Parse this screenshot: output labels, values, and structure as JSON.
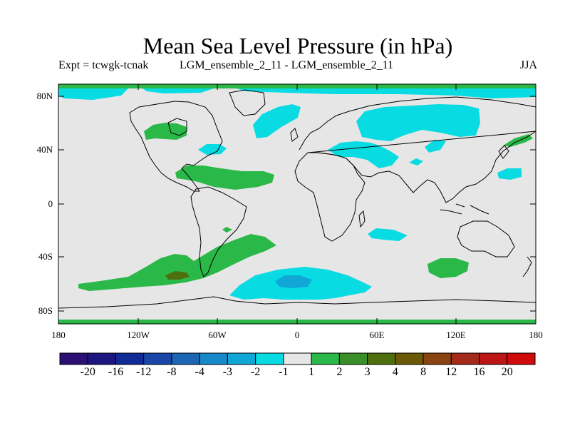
{
  "title": "Mean Sea Level Pressure (in hPa)",
  "experiment": "Expt = tcwgk-tcnak",
  "comparison": "LGM_ensemble_2_11 - LGM_ensemble_2_11",
  "season": "JJA",
  "y_ticks": [
    "80N",
    "40N",
    "0",
    "40S",
    "80S"
  ],
  "x_ticks": [
    "180",
    "120W",
    "60W",
    "0",
    "60E",
    "120E",
    "180"
  ],
  "colorbar": {
    "colors": [
      "#2b0f73",
      "#1d1681",
      "#112b96",
      "#1a46a8",
      "#1c66b4",
      "#1788c9",
      "#10a6d6",
      "#08dbe2",
      "#e6e6e6",
      "#2ab848",
      "#3a8f28",
      "#4e6f10",
      "#6a5a08",
      "#8a4412",
      "#a42a1a",
      "#bd1414",
      "#cf0a0a"
    ],
    "labels": [
      "-20",
      "-16",
      "-12",
      "-8",
      "-4",
      "-3",
      "-2",
      "-1",
      "1",
      "2",
      "3",
      "4",
      "8",
      "12",
      "16",
      "20"
    ]
  },
  "colors": {
    "land_ocean": "#e6e6e6",
    "neg_light": "#08dbe2",
    "neg_medium": "#10a6d6",
    "pos_light": "#2ab848",
    "pos_dark": "#4e6f10"
  }
}
